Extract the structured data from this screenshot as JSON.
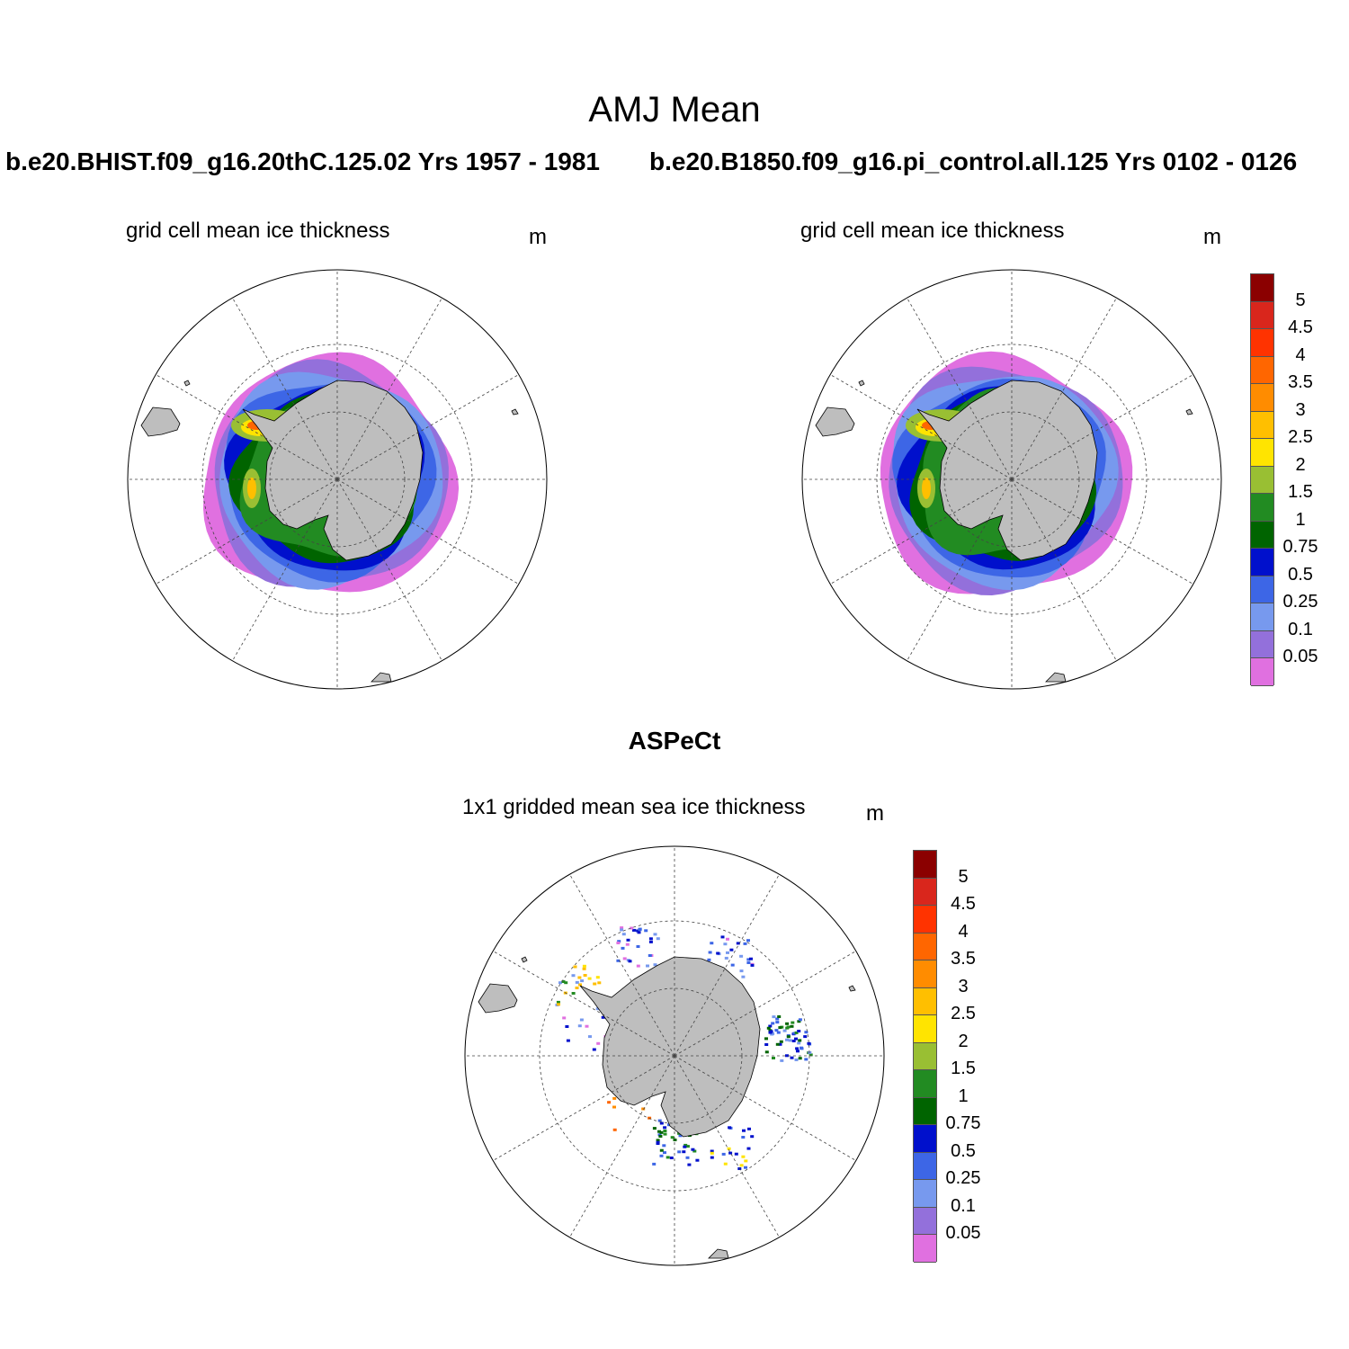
{
  "title": "AMJ Mean",
  "runs": [
    {
      "label": "b.e20.BHIST.f09_g16.20thC.125.02  Yrs 1957 - 1981"
    },
    {
      "label": "b.e20.B1850.f09_g16.pi_control.all.125  Yrs 0102 - 0126"
    }
  ],
  "panels": [
    {
      "subtitle": "grid cell mean ice thickness",
      "units": "m"
    },
    {
      "subtitle": "grid cell mean ice thickness",
      "units": "m"
    },
    {
      "subtitle": "1x1 gridded mean sea ice thickness",
      "units": "m"
    }
  ],
  "observation_title": "ASPeCt",
  "colorbar": {
    "labels": [
      "5",
      "4.5",
      "4",
      "3.5",
      "3",
      "2.5",
      "2",
      "1.5",
      "1",
      "0.75",
      "0.5",
      "0.25",
      "0.1",
      "0.05"
    ],
    "colors": [
      "#8b0000",
      "#d9261c",
      "#ff3300",
      "#ff6600",
      "#ff8c00",
      "#ffbf00",
      "#ffe400",
      "#99bf33",
      "#228b22",
      "#006400",
      "#0010cc",
      "#3d66e6",
      "#7799ee",
      "#9370db",
      "#e070e0"
    ]
  },
  "colors": {
    "land": "#bebebe",
    "boundary": "#000000",
    "grid": "#555555"
  }
}
